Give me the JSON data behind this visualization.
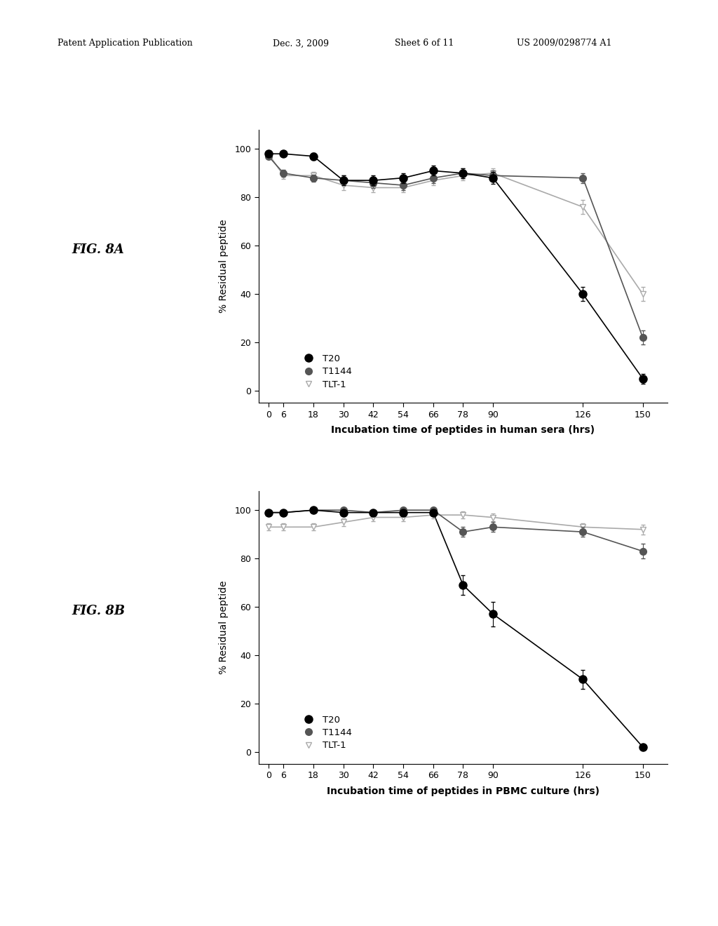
{
  "x_ticks": [
    0,
    6,
    18,
    30,
    42,
    54,
    66,
    78,
    90,
    126,
    150
  ],
  "figA": {
    "xlabel": "Incubation time of peptides in human sera (hrs)",
    "ylabel": "% Residual peptide",
    "T20_x": [
      0,
      6,
      18,
      30,
      42,
      54,
      66,
      78,
      90,
      126,
      150
    ],
    "T20_y": [
      98,
      98,
      97,
      87,
      87,
      88,
      91,
      90,
      88,
      40,
      5
    ],
    "T20_err": [
      1,
      1,
      1.5,
      2,
      2,
      2,
      2,
      2,
      2.5,
      3,
      2
    ],
    "T1144_x": [
      0,
      6,
      18,
      30,
      42,
      54,
      66,
      78,
      90,
      126,
      150
    ],
    "T1144_y": [
      97,
      90,
      88,
      87,
      86,
      85,
      88,
      90,
      89,
      88,
      22
    ],
    "T1144_err": [
      1,
      1.5,
      1.5,
      2,
      2,
      2,
      2,
      2,
      2,
      2,
      3
    ],
    "TLT1_x": [
      0,
      6,
      18,
      30,
      42,
      54,
      66,
      78,
      90,
      126,
      150
    ],
    "TLT1_y": [
      98,
      89,
      89,
      85,
      84,
      84,
      87,
      89,
      90,
      76,
      40
    ],
    "TLT1_err": [
      1,
      1.5,
      1.5,
      2,
      2,
      2,
      2,
      2,
      2,
      3,
      3
    ],
    "ylim": [
      -5,
      108
    ],
    "yticks": [
      0,
      20,
      40,
      60,
      80,
      100
    ]
  },
  "figB": {
    "xlabel": "Incubation time of peptides in PBMC culture (hrs)",
    "ylabel": "% Residual peptide",
    "T20_x": [
      0,
      6,
      18,
      30,
      42,
      54,
      66,
      78,
      90,
      126,
      150
    ],
    "T20_y": [
      99,
      99,
      100,
      99,
      99,
      99,
      99,
      69,
      57,
      30,
      2
    ],
    "T20_err": [
      0.5,
      0.5,
      0.5,
      0.5,
      0.5,
      0.5,
      0.5,
      4,
      5,
      4,
      1
    ],
    "T1144_x": [
      0,
      6,
      18,
      30,
      42,
      54,
      66,
      78,
      90,
      126,
      150
    ],
    "T1144_y": [
      99,
      99,
      100,
      100,
      99,
      100,
      100,
      91,
      93,
      91,
      83
    ],
    "T1144_err": [
      0.5,
      0.5,
      0.5,
      0.5,
      0.5,
      0.5,
      0.5,
      2,
      2,
      2,
      3
    ],
    "TLT1_x": [
      0,
      6,
      18,
      30,
      42,
      54,
      66,
      78,
      90,
      126,
      150
    ],
    "TLT1_y": [
      93,
      93,
      93,
      95,
      97,
      97,
      98,
      98,
      97,
      93,
      92
    ],
    "TLT1_err": [
      1.5,
      1.5,
      1.5,
      1.5,
      1.5,
      1.5,
      1.5,
      1.5,
      1.5,
      1.5,
      2
    ],
    "ylim": [
      -5,
      108
    ],
    "yticks": [
      0,
      20,
      40,
      60,
      80,
      100
    ]
  },
  "colors": {
    "T20": "#000000",
    "T1144": "#555555",
    "TLT1": "#aaaaaa"
  },
  "bg_color": "#ffffff",
  "header_parts": [
    "Patent Application Publication",
    "Dec. 3, 2009",
    "Sheet 6 of 11",
    "US 2009/0298774 A1"
  ]
}
